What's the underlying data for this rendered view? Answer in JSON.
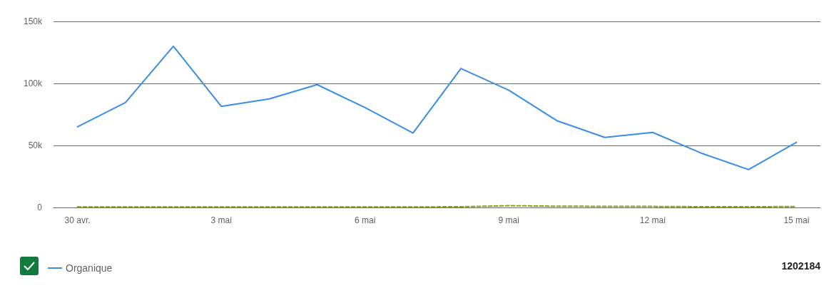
{
  "chart_data": {
    "type": "line",
    "categories": [
      "30 avr.",
      null,
      null,
      "3 mai",
      null,
      null,
      "6 mai",
      null,
      null,
      "9 mai",
      null,
      null,
      "12 mai",
      null,
      null,
      "15 mai"
    ],
    "series": [
      {
        "name": "Organique",
        "color": "#3a8ee6",
        "values": [
          65000,
          84500,
          130000,
          81500,
          87500,
          99000,
          80500,
          60000,
          112000,
          94500,
          70000,
          56500,
          60500,
          44000,
          30500,
          52500
        ]
      },
      {
        "color": "#8c9c1c",
        "line_style": "dashed",
        "values": [
          400,
          400,
          400,
          400,
          400,
          400,
          400,
          400,
          600,
          1400,
          1000,
          900,
          800,
          600,
          500,
          800
        ]
      }
    ],
    "ylim": [
      0,
      150000
    ],
    "yticks": [
      0,
      {
        "value": 50000,
        "label": "50k"
      },
      {
        "value": 100000,
        "label": "100k"
      },
      {
        "value": 150000,
        "label": "150k"
      }
    ],
    "grid": "y",
    "legend": "bottom left",
    "marker": "none",
    "line_style": "solid",
    "annotations": [
      "1202184"
    ]
  }
}
